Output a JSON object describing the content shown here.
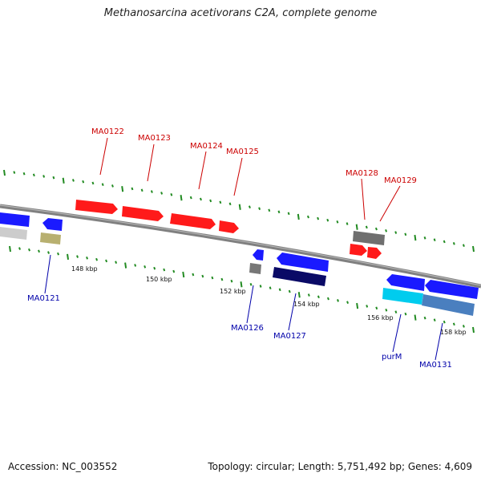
{
  "title": "Methanosarcina acetivorans C2A, complete genome",
  "footer": {
    "accession": "Accession: NC_003552",
    "summary": "Topology: circular; Length: 5,751,492 bp; Genes: 4,609"
  },
  "colors": {
    "forward_gene": "#ff1a1a",
    "reverse_gene": "#1a1aff",
    "forward_label": "#cc0000",
    "reverse_label": "#0000aa",
    "backbone": "#808080",
    "tick": "#228b22",
    "rna_gray": "#777777",
    "olive": "#b8b070",
    "navy": "#0a0a66",
    "cyan": "#00ccee",
    "steel": "#4a7fbf"
  },
  "scale_labels": [
    "148 kbp",
    "150 kbp",
    "152 kbp",
    "154 kbp",
    "156 kbp",
    "158 kbp"
  ],
  "forward_labels": [
    "MA0122",
    "MA0123",
    "MA0124",
    "MA0125",
    "MA0128",
    "MA0129"
  ],
  "reverse_labels": [
    "MA0121",
    "MA0126",
    "MA0127",
    "purM",
    "MA0131"
  ]
}
